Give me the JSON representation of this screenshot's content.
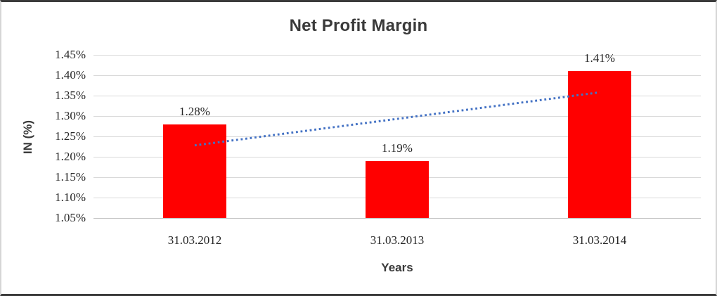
{
  "chart_data": {
    "type": "bar",
    "title": "Net Profit Margin",
    "xlabel": "Years",
    "ylabel": "IN (%)",
    "categories": [
      "31.03.2012",
      "31.03.2013",
      "31.03.2014"
    ],
    "values": [
      1.28,
      1.19,
      1.41
    ],
    "data_labels": [
      "1.28%",
      "1.19%",
      "1.41%"
    ],
    "ylim": [
      1.05,
      1.45
    ],
    "yticks": [
      1.05,
      1.1,
      1.15,
      1.2,
      1.25,
      1.3,
      1.35,
      1.4,
      1.45
    ],
    "ytick_labels": [
      "1.05%",
      "1.10%",
      "1.15%",
      "1.20%",
      "1.25%",
      "1.30%",
      "1.35%",
      "1.40%",
      "1.45%"
    ],
    "grid": true,
    "legend": false,
    "bar_color": "#FF0000",
    "text_color": "#262626",
    "title_color": "#3a3a3a",
    "gridline_color": "#d9d9d9",
    "baseline_color": "#bfbfbf",
    "trendline": {
      "type": "linear",
      "style": "dotted",
      "color": "#4472C4",
      "start_value": 1.228,
      "end_value": 1.358
    }
  }
}
